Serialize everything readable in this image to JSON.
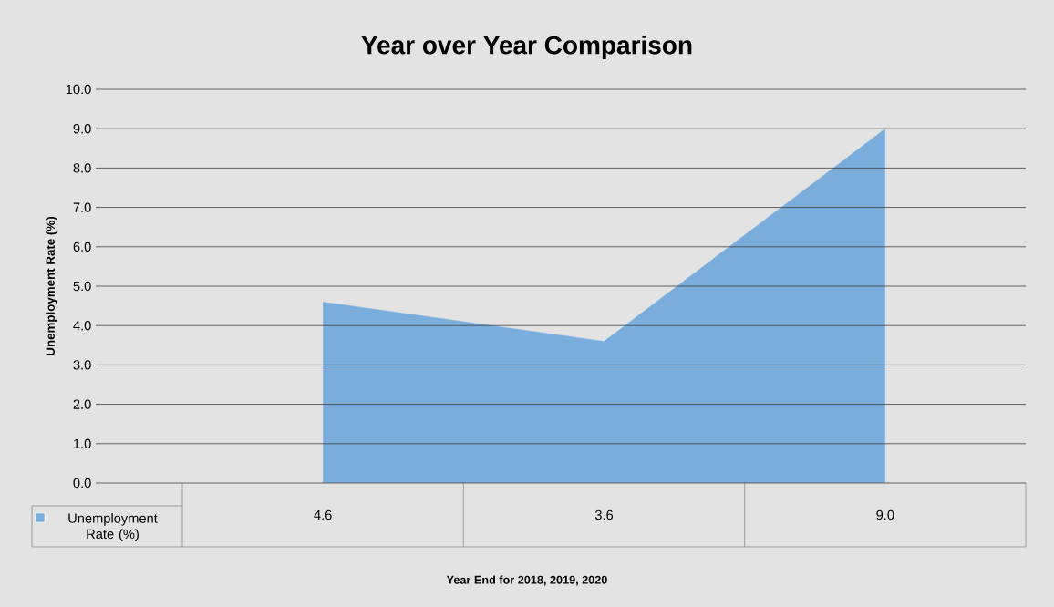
{
  "chart_data": {
    "type": "area",
    "title": "Year over Year Comparison",
    "annotations": [
      "Year End for 2018, 2019, 2020"
    ],
    "ylabel": "Unemployment Rate (%)",
    "categories": [
      null,
      null,
      null
    ],
    "series": [
      {
        "name": "Unemployment Rate (%)",
        "color": "#7aaddc",
        "values": [
          4.6,
          3.6,
          9.0
        ],
        "value_labels": [
          "4.6",
          "3.6",
          "9.0"
        ]
      }
    ],
    "ylim": [
      0,
      10
    ],
    "yticks": [
      {
        "value": 0,
        "label": "0.0"
      },
      {
        "value": 1,
        "label": "1.0"
      },
      {
        "value": 2,
        "label": "2.0"
      },
      {
        "value": 3,
        "label": "3.0"
      },
      {
        "value": 4,
        "label": "4.0"
      },
      {
        "value": 5,
        "label": "5.0"
      },
      {
        "value": 6,
        "label": "6.0"
      },
      {
        "value": 7,
        "label": "7.0"
      },
      {
        "value": 8,
        "label": "8.0"
      },
      {
        "value": 9,
        "label": "9.0"
      },
      {
        "value": 10,
        "label": "10.0"
      }
    ],
    "grid": "y",
    "legend": "bottom"
  }
}
